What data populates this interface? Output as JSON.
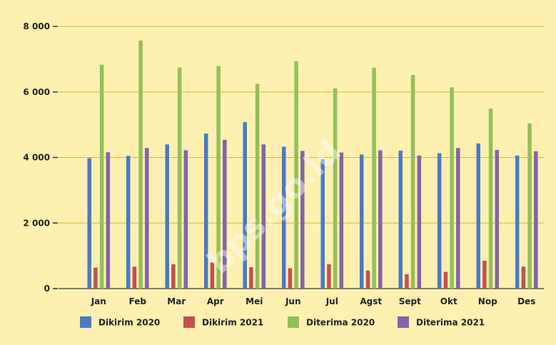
{
  "chart_data": {
    "type": "bar",
    "categories": [
      "Jan",
      "Feb",
      "Mar",
      "Apr",
      "Mei",
      "Jun",
      "Jul",
      "Agst",
      "Sept",
      "Okt",
      "Nop",
      "Des"
    ],
    "series": [
      {
        "name": "Dikirim 2020",
        "color": "#4a7ac6",
        "values": [
          3980,
          4050,
          4400,
          4730,
          5080,
          4330,
          3950,
          4090,
          4210,
          4130,
          4430,
          4060
        ]
      },
      {
        "name": "Dikirim 2021",
        "color": "#c4504e",
        "values": [
          640,
          670,
          740,
          800,
          650,
          620,
          740,
          550,
          440,
          510,
          850,
          670
        ]
      },
      {
        "name": "Diterima 2020",
        "color": "#93c05a",
        "values": [
          6830,
          7570,
          6750,
          6790,
          6250,
          6940,
          6110,
          6740,
          6520,
          6140,
          5490,
          5040
        ]
      },
      {
        "name": "Diterima 2021",
        "color": "#8265a6",
        "values": [
          4160,
          4290,
          4220,
          4540,
          4400,
          4200,
          4150,
          4220,
          4060,
          4290,
          4230,
          4190
        ]
      }
    ],
    "title": "",
    "xlabel": "",
    "ylabel": "",
    "ylim": [
      0,
      8000
    ],
    "yticks": [
      0,
      2000,
      4000,
      6000,
      8000
    ],
    "ytick_labels": [
      "0",
      "2 000",
      "4 000",
      "6 000",
      "8 000"
    ],
    "grid": true,
    "legend_position": "bottom"
  },
  "watermark_text": "bps.go.id"
}
